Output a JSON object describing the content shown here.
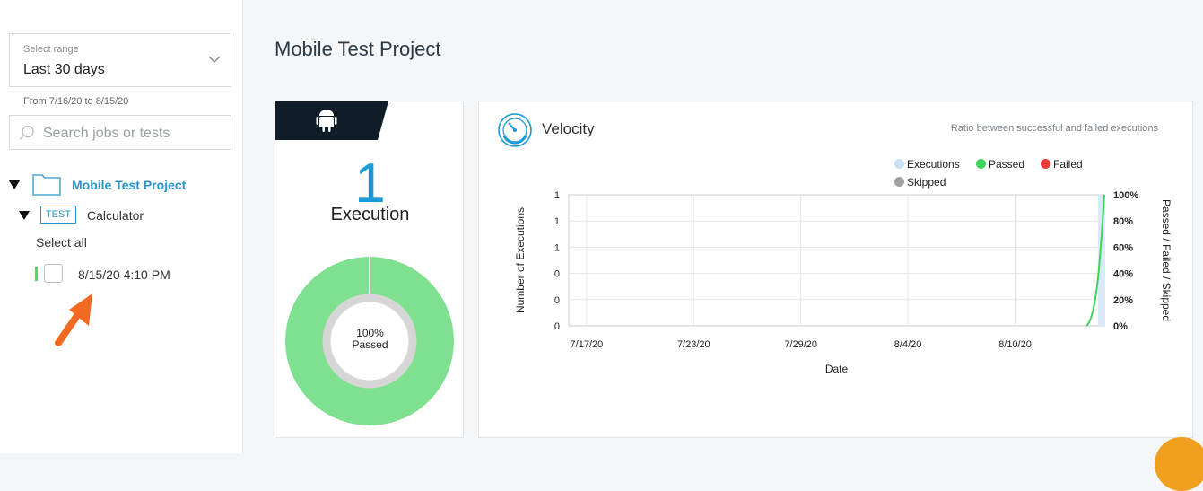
{
  "sidebar": {
    "range": {
      "label": "Select range",
      "value": "Last 30 days",
      "from_to": "From 7/16/20 to 8/15/20"
    },
    "search": {
      "placeholder": "Search jobs or tests"
    },
    "tree": {
      "project": "Mobile Test Project",
      "test_badge": "TEST",
      "test_name": "Calculator",
      "select_all": "Select all",
      "executions": [
        {
          "label": "8/15/20 4:10 PM"
        }
      ]
    }
  },
  "main": {
    "title": "Mobile Test Project",
    "exec_card": {
      "count": "1",
      "count_label": "Execution",
      "donut_pct": "100%",
      "donut_label": "Passed",
      "passed_fraction": 1.0
    },
    "velocity": {
      "title": "Velocity",
      "subtitle": "Ratio between successful and failed executions",
      "legend": [
        {
          "name": "Executions",
          "color": "#c9e2f7"
        },
        {
          "name": "Passed",
          "color": "#3fd45a"
        },
        {
          "name": "Failed",
          "color": "#ea3c3c"
        },
        {
          "name": "Skipped",
          "color": "#a0a0a0"
        }
      ]
    }
  },
  "colors": {
    "accent": "#1a9ad6",
    "passed": "#7fe08f",
    "passed_line": "#3fd45a",
    "track": "#d9d9d9",
    "android_tab": "#101c27"
  },
  "chart_data": {
    "type": "line",
    "title": "Velocity",
    "subtitle": "Ratio between successful and failed executions",
    "xlabel": "Date",
    "ylabel": "Number of Executions",
    "y2label": "Passed / Failed / Skipped",
    "x_ticks": [
      "7/17/20",
      "7/23/20",
      "7/29/20",
      "8/4/20",
      "8/10/20"
    ],
    "y_ticks": [
      "0",
      "0",
      "0",
      "1",
      "1",
      "1"
    ],
    "y2_ticks": [
      "0%",
      "20%",
      "40%",
      "60%",
      "80%",
      "100%"
    ],
    "ylim": [
      0,
      1
    ],
    "y2lim": [
      0,
      100
    ],
    "x_range": [
      "7/16/20",
      "8/15/20"
    ],
    "series": [
      {
        "name": "Executions",
        "points": [
          [
            "8/15/20",
            1
          ]
        ]
      },
      {
        "name": "Passed",
        "points": [
          [
            "8/14/20",
            0
          ],
          [
            "8/15/20",
            100
          ]
        ]
      },
      {
        "name": "Failed",
        "points": []
      },
      {
        "name": "Skipped",
        "points": []
      }
    ],
    "grid": true,
    "legend_position": "top-right"
  }
}
